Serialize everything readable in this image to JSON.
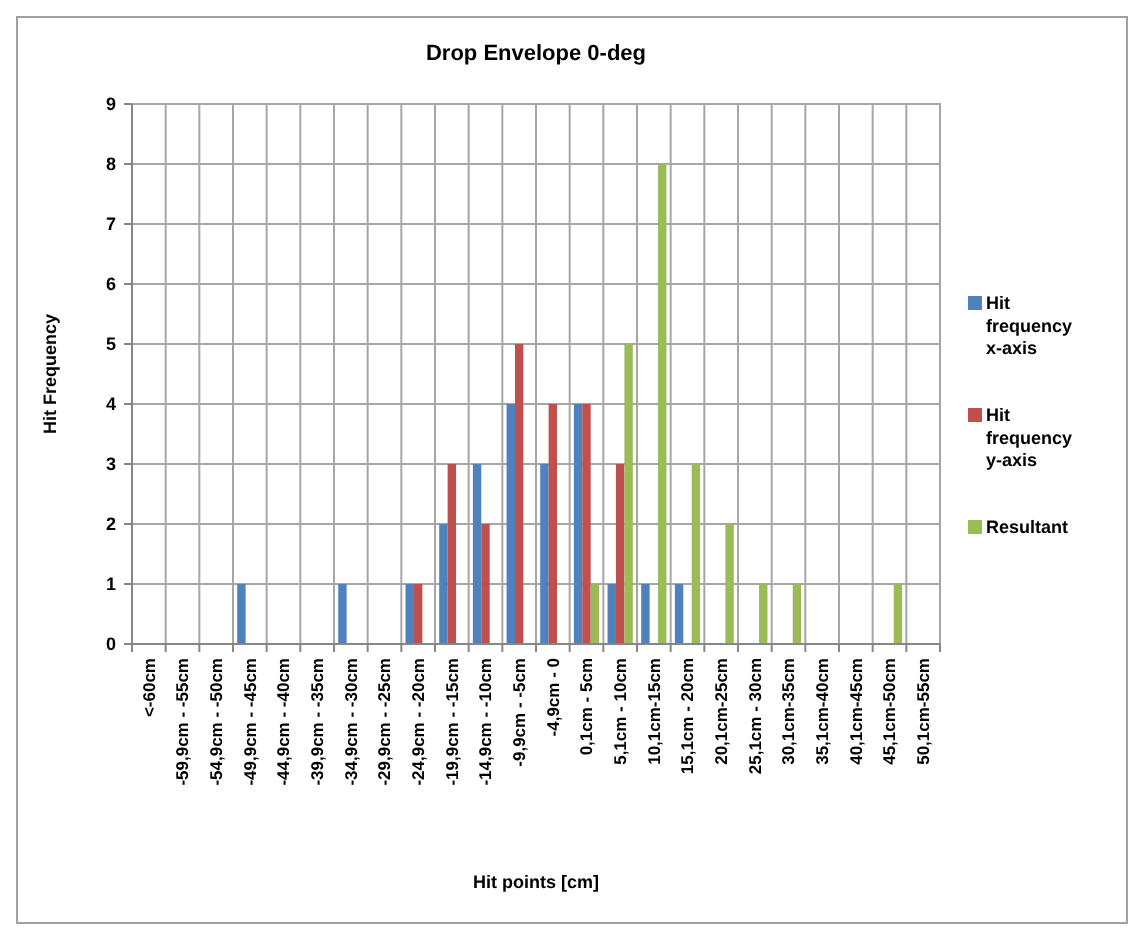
{
  "chart_data": {
    "type": "bar",
    "title": "Drop Envelope 0-deg",
    "xlabel": "Hit points [cm]",
    "ylabel": "Hit Frequency",
    "categories": [
      "<-60cm",
      "-59,9cm - -55cm",
      "-54,9cm - -50cm",
      "-49,9cm - -45cm",
      "-44,9cm - -40cm",
      "-39,9cm - -35cm",
      "-34,9cm - -30cm",
      "-29,9cm - -25cm",
      "-24,9cm - -20cm",
      "-19,9cm - -15cm",
      "-14,9cm - -10cm",
      "-9,9cm - -5cm",
      "-4,9cm - 0",
      "0,1cm - 5cm",
      "5,1cm - 10cm",
      "10,1cm-15cm",
      "15,1cm - 20cm",
      "20,1cm-25cm",
      "25,1cm - 30cm",
      "30,1cm-35cm",
      "35,1cm-40cm",
      "40,1cm-45cm",
      "45,1cm-50cm",
      "50,1cm-55cm"
    ],
    "series": [
      {
        "name": "Hit frequency x-axis",
        "color": "#4f81bd",
        "values": [
          0,
          0,
          0,
          1,
          0,
          0,
          1,
          0,
          1,
          2,
          3,
          4,
          3,
          4,
          1,
          1,
          1,
          0,
          0,
          0,
          0,
          0,
          0,
          0
        ]
      },
      {
        "name": "Hit frequency y-axis",
        "color": "#c0504d",
        "values": [
          0,
          0,
          0,
          0,
          0,
          0,
          0,
          0,
          1,
          3,
          2,
          5,
          4,
          4,
          3,
          0,
          0,
          0,
          0,
          0,
          0,
          0,
          0,
          0
        ]
      },
      {
        "name": "Resultant",
        "color": "#9bbb59",
        "values": [
          0,
          0,
          0,
          0,
          0,
          0,
          0,
          0,
          0,
          0,
          0,
          0,
          0,
          1,
          5,
          8,
          3,
          2,
          1,
          1,
          0,
          0,
          1,
          0
        ]
      }
    ],
    "ylim": [
      0,
      9
    ],
    "yticks": [
      0,
      1,
      2,
      3,
      4,
      5,
      6,
      7,
      8,
      9
    ],
    "grid": true,
    "legend": "right"
  }
}
